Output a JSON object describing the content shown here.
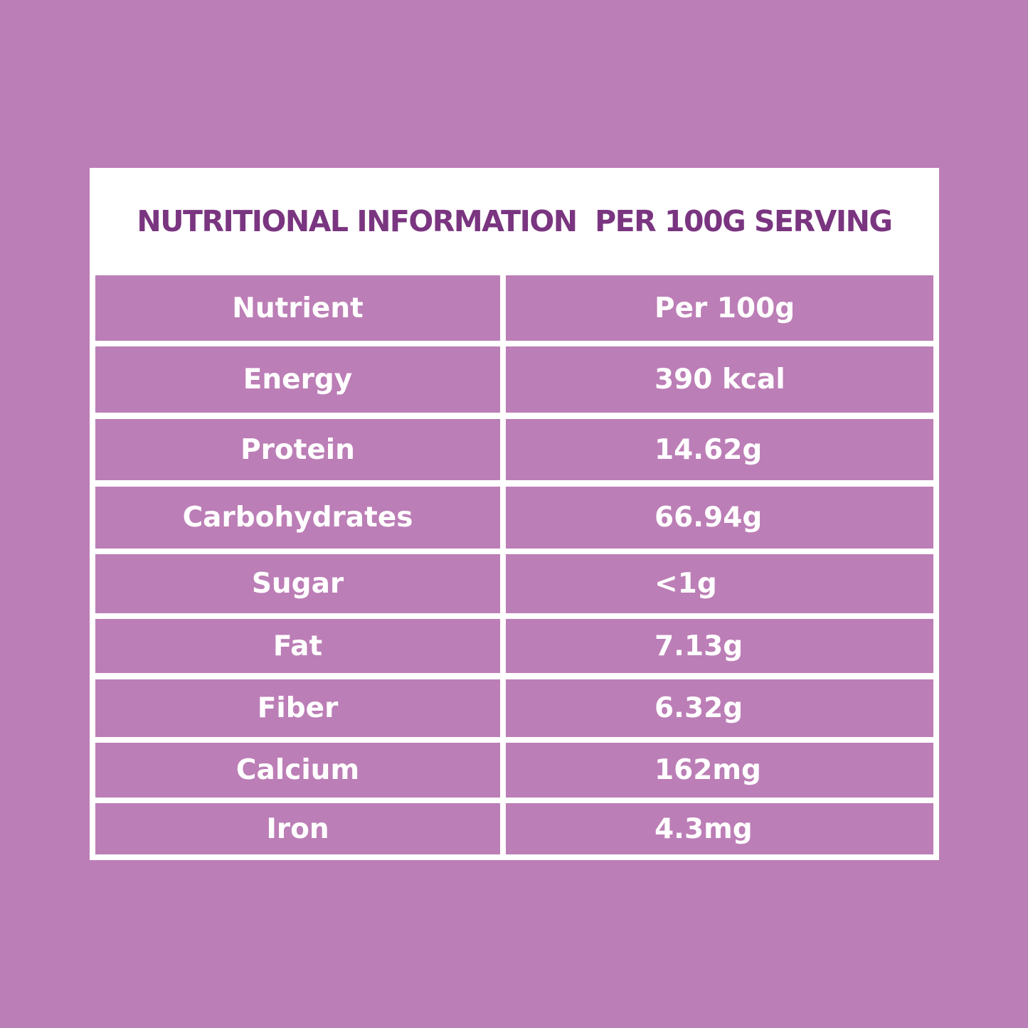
{
  "title": "NUTRITIONAL INFORMATION  PER 100G SERVING",
  "table": {
    "headers": [
      "Nutrient",
      "Per 100g"
    ],
    "rows": [
      [
        "Energy",
        "390 kcal"
      ],
      [
        "Protein",
        "14.62g"
      ],
      [
        "Carbohydrates",
        "66.94g"
      ],
      [
        "Sugar",
        "<1g"
      ],
      [
        "Fat",
        "7.13g"
      ],
      [
        "Fiber",
        "6.32g"
      ],
      [
        "Calcium",
        "162mg"
      ],
      [
        "Iron",
        "4.3mg"
      ]
    ]
  },
  "colors": {
    "background": "#bc7eb6",
    "panel": "#ffffff",
    "title_text": "#7a3580",
    "cell_fill": "#bc7eb6",
    "cell_text": "#ffffff"
  }
}
